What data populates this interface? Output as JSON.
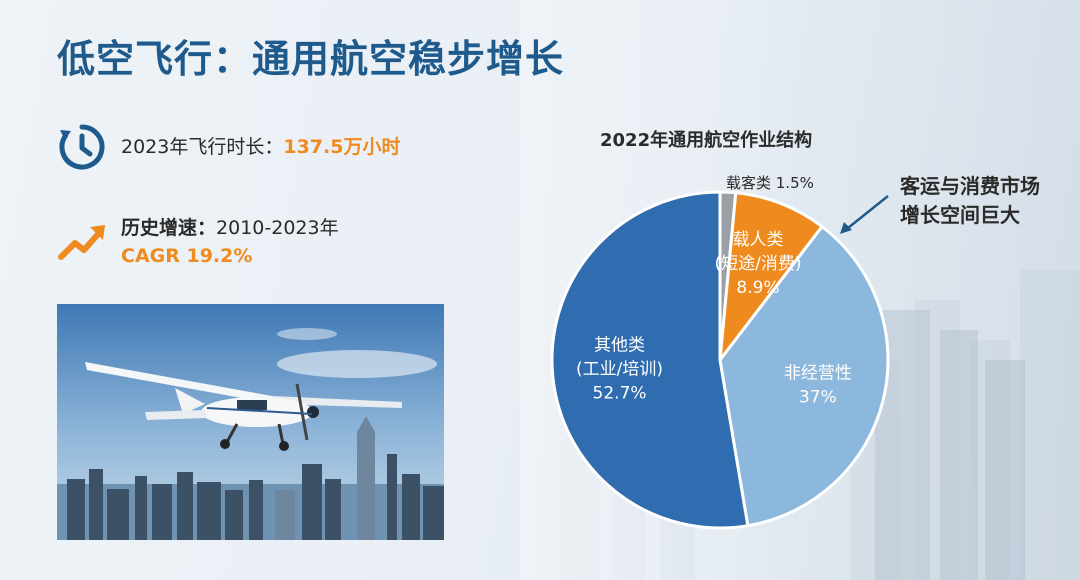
{
  "page": {
    "title": "低空飞行：通用航空稳步增长"
  },
  "stats": {
    "flight_hours_label": "2023年飞行时长：",
    "flight_hours_value": "137.5万小时",
    "growth_label": "历史增速：",
    "growth_period": "2010-2023年",
    "growth_value": "CAGR 19.2%"
  },
  "annotation": {
    "line1": "客运与消费市场",
    "line2": "增长空间巨大"
  },
  "chart_data": {
    "type": "pie",
    "title": "2022年通用航空作业结构",
    "slices": [
      {
        "label": "载客类",
        "value": 1.5,
        "value_label": "1.5%",
        "color": "#9aa0a6"
      },
      {
        "label": "载人类",
        "sublabel": "(短途/消费)",
        "value": 8.9,
        "value_label": "8.9%",
        "color": "#ee8a1e"
      },
      {
        "label": "非经营性",
        "value": 37,
        "value_label": "37%",
        "color": "#8db8de"
      },
      {
        "label": "其他类",
        "sublabel": "(工业/培训)",
        "value": 52.7,
        "value_label": "52.7%",
        "color": "#2f6db0"
      }
    ]
  },
  "colors": {
    "title": "#1f5a8c",
    "highlight": "#ee8a1e",
    "icon": "#1f5a8c"
  },
  "icons": {
    "clock": "clock-icon",
    "growth": "trend-up-arrow-icon"
  }
}
